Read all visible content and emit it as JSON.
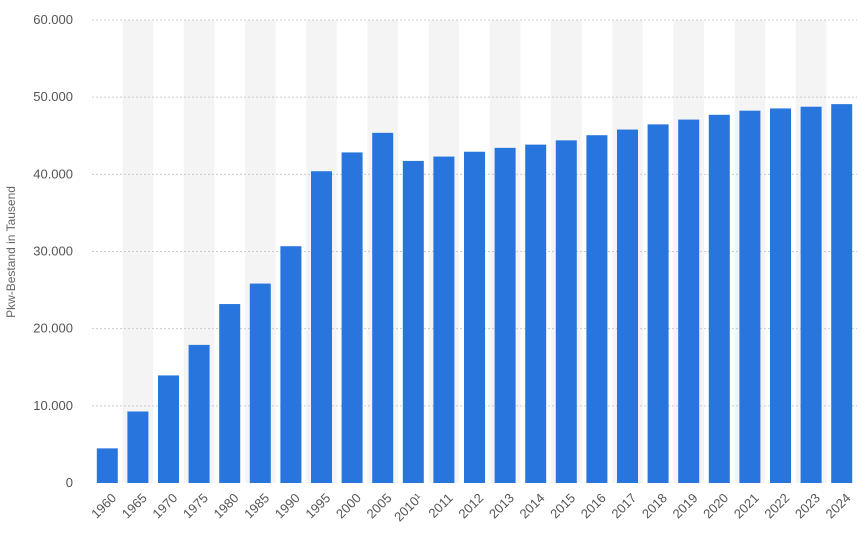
{
  "chart_data": {
    "type": "bar",
    "title": "",
    "xlabel": "",
    "ylabel": "Pkw-Bestand in Tausend",
    "categories": [
      "1960",
      "1965",
      "1970",
      "1975",
      "1980",
      "1985",
      "1990",
      "1995",
      "2000",
      "2005",
      "2010¹",
      "2011",
      "2012",
      "2013",
      "2014",
      "2015",
      "2016",
      "2017",
      "2018",
      "2019",
      "2020",
      "2021",
      "2022",
      "2023",
      "2024"
    ],
    "values": [
      4489,
      9267,
      13941,
      17898,
      23192,
      25845,
      30685,
      40404,
      42840,
      45376,
      41738,
      42302,
      42928,
      43431,
      43851,
      44403,
      45071,
      45804,
      46475,
      47096,
      47716,
      48249,
      48541,
      48763,
      49098
    ],
    "ylim": [
      0,
      60000
    ],
    "yticks": [
      0,
      10000,
      20000,
      30000,
      40000,
      50000,
      60000
    ],
    "ytick_labels": [
      "0",
      "10.000",
      "20.000",
      "30.000",
      "40.000",
      "50.000",
      "60.000"
    ],
    "grid": true,
    "legend": "none",
    "colors": {
      "bar": "#2876dd",
      "band": "#f4f4f4",
      "grid": "#cccccc",
      "text": "#555555"
    }
  }
}
